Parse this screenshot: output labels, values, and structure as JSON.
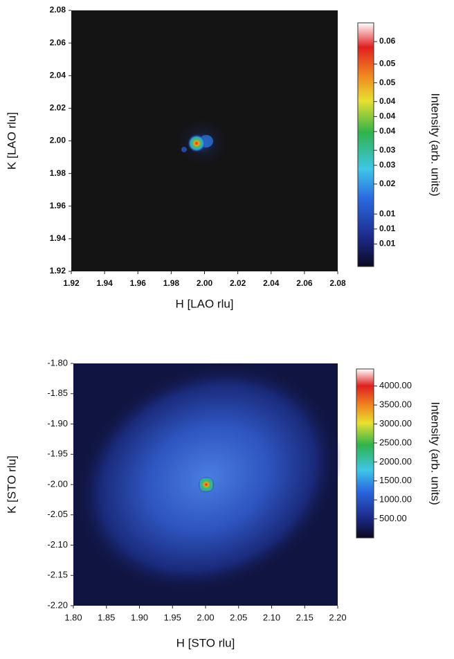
{
  "chart_data": [
    {
      "type": "heatmap",
      "xlabel": "H [LAO rlu]",
      "ylabel": "K [LAO rlu]",
      "colorbar_label": "Intensity (arb. units)",
      "xlim": [
        1.92,
        2.08
      ],
      "ylim": [
        1.92,
        2.08
      ],
      "xticks": [
        1.92,
        1.94,
        1.96,
        1.98,
        {
          "value": 2,
          "label": "2.00"
        },
        2.02,
        2.04,
        2.06,
        2.08
      ],
      "yticks": [
        1.92,
        1.94,
        1.96,
        1.98,
        {
          "value": 2,
          "label": "2.00"
        },
        2.02,
        2.04,
        2.06,
        2.08
      ],
      "clim": [
        0,
        0.065
      ],
      "cticks": [
        {
          "value": 0.06,
          "label": "0.06"
        },
        {
          "value": 0.054,
          "label": "0.05"
        },
        {
          "value": 0.049,
          "label": "0.05"
        },
        {
          "value": 0.044,
          "label": "0.04"
        },
        {
          "value": 0.04,
          "label": "0.04"
        },
        {
          "value": 0.036,
          "label": "0.04"
        },
        {
          "value": 0.031,
          "label": "0.03"
        },
        {
          "value": 0.027,
          "label": "0.03"
        },
        {
          "value": 0.022,
          "label": "0.02"
        },
        {
          "value": 0.014,
          "label": "0.01"
        },
        {
          "value": 0.01,
          "label": "0.01"
        },
        {
          "value": 0.006,
          "label": "0.01"
        }
      ]
    },
    {
      "type": "heatmap",
      "xlabel": "H [STO rlu]",
      "ylabel": "K [STO rlu]",
      "colorbar_label": "Intensity (arb. units)",
      "xlim": [
        1.8,
        2.2
      ],
      "ylim": [
        -2.2,
        -1.8
      ],
      "xticks": [
        {
          "value": 1.8,
          "label": "1.80"
        },
        1.85,
        {
          "value": 1.9,
          "label": "1.90"
        },
        1.95,
        {
          "value": 2,
          "label": "2.00"
        },
        2.05,
        {
          "value": 2.1,
          "label": "2.10"
        },
        2.15,
        {
          "value": 2.2,
          "label": "2.20"
        }
      ],
      "yticks": [
        {
          "value": -2.2,
          "label": "-2.20"
        },
        -2.15,
        {
          "value": -2.1,
          "label": "-2.10"
        },
        -2.05,
        {
          "value": -2,
          "label": "-2.00"
        },
        -1.95,
        {
          "value": -1.9,
          "label": "-1.90"
        },
        -1.85,
        {
          "value": -1.8,
          "label": "-1.80"
        }
      ],
      "clim": [
        0,
        4450
      ],
      "cticks": [
        {
          "value": 4000,
          "label": "4000.00"
        },
        {
          "value": 3500,
          "label": "3500.00"
        },
        {
          "value": 3000,
          "label": "3000.00"
        },
        {
          "value": 2500,
          "label": "2500.00"
        },
        {
          "value": 2000,
          "label": "2000.00"
        },
        {
          "value": 1500,
          "label": "1500.00"
        },
        {
          "value": 1000,
          "label": "1000.00"
        },
        {
          "value": 500,
          "label": "500.00"
        }
      ]
    }
  ]
}
